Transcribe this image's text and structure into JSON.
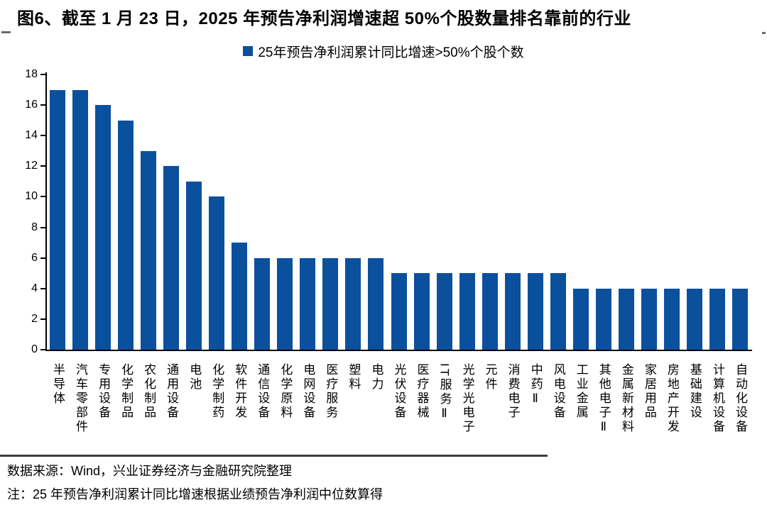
{
  "page": {
    "title": "图6、截至 1 月 23 日，2025 年预告净利润增速超 50%个股数量排名靠前的行业"
  },
  "legend": {
    "label": "25年预告净利润累计同比增速>50%个股个数",
    "marker_color": "#0B509D"
  },
  "chart_data": {
    "type": "bar",
    "title": "图6、截至 1 月 23 日，2025 年预告净利润增速超 50%个股数量排名靠前的行业",
    "legend": [
      "25年预告净利润累计同比增速>50%个股个数"
    ],
    "legend_position": "top-center",
    "categories": [
      "半导体",
      "汽车零部件",
      "专用设备",
      "化学制品",
      "农化制品",
      "通用设备",
      "电池",
      "化学制药",
      "软件开发",
      "通信设备",
      "化学原料",
      "电网设备",
      "医疗服务",
      "塑料",
      "电力",
      "光伏设备",
      "医疗器械",
      "IT服务Ⅱ",
      "光学光电子",
      "元件",
      "消费电子",
      "中药Ⅱ",
      "风电设备",
      "工业金属",
      "其他电子Ⅱ",
      "金属新材料",
      "家居用品",
      "房地产开发",
      "基础建设",
      "计算机设备",
      "自动化设备"
    ],
    "values": [
      17,
      17,
      16,
      15,
      13,
      12,
      11,
      10,
      7,
      6,
      6,
      6,
      6,
      6,
      6,
      5,
      5,
      5,
      5,
      5,
      5,
      5,
      5,
      4,
      4,
      4,
      4,
      4,
      4,
      4,
      4
    ],
    "xlabel": "",
    "ylabel": "",
    "ylim": [
      0,
      18
    ],
    "yticks": [
      0,
      2,
      4,
      6,
      8,
      10,
      12,
      14,
      16,
      18
    ],
    "grid": false,
    "bar_color": "#0B509D"
  },
  "footer": {
    "source": "数据来源：Wind，兴业证券经济与金融研究院整理",
    "note": "注：25 年预告净利润累计同比增速根据业绩预告净利润中位数算得"
  }
}
